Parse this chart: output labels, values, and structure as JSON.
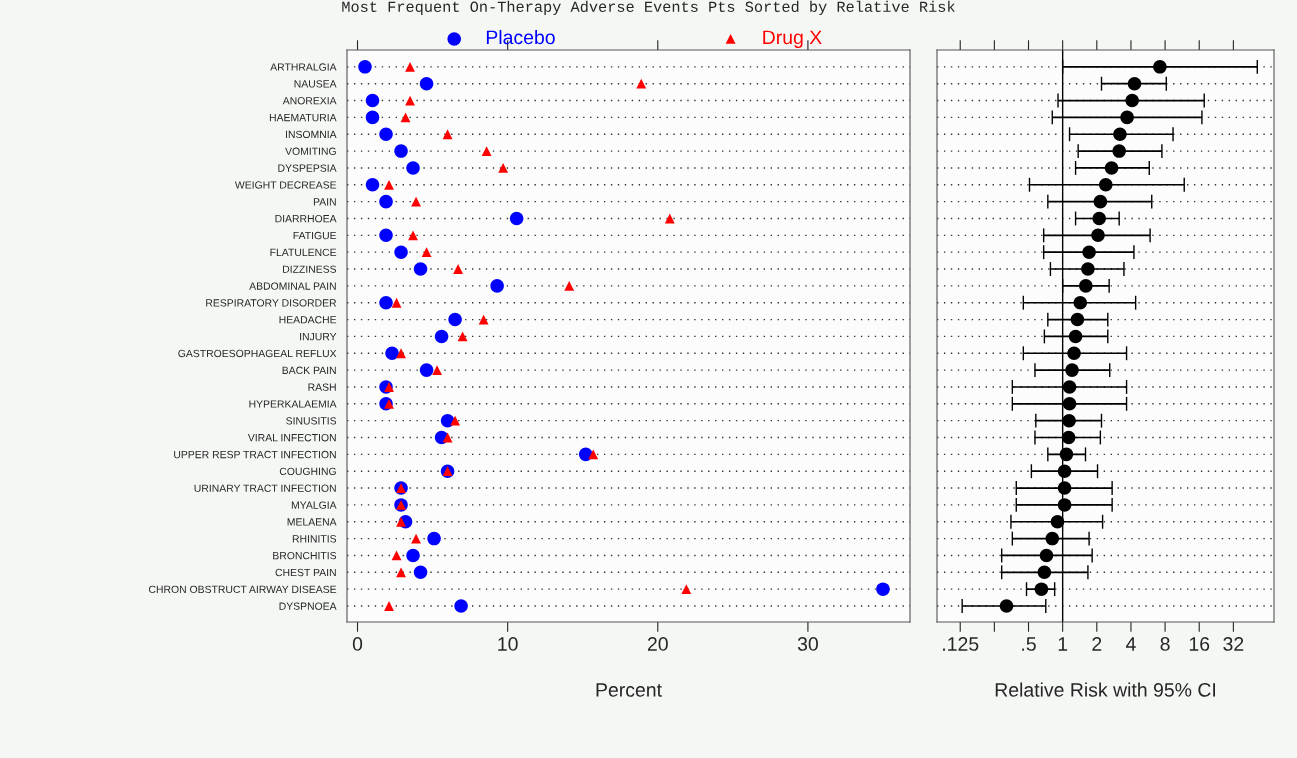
{
  "chart_data": [
    {
      "type": "scatter",
      "title": "Most Frequent On-Therapy Adverse Events Pts Sorted by Relative Risk",
      "xlabel": "Percent",
      "categories": [
        "ARTHRALGIA",
        "NAUSEA",
        "ANOREXIA",
        "HAEMATURIA",
        "INSOMNIA",
        "VOMITING",
        "DYSPEPSIA",
        "WEIGHT DECREASE",
        "PAIN",
        "DIARRHOEA",
        "FATIGUE",
        "FLATULENCE",
        "DIZZINESS",
        "ABDOMINAL PAIN",
        "RESPIRATORY DISORDER",
        "HEADACHE",
        "INJURY",
        "GASTROESOPHAGEAL REFLUX",
        "BACK PAIN",
        "RASH",
        "HYPERKALAEMIA",
        "SINUSITIS",
        "VIRAL INFECTION",
        "UPPER RESP TRACT INFECTION",
        "COUGHING",
        "URINARY TRACT INFECTION",
        "MYALGIA",
        "MELAENA",
        "RHINITIS",
        "BRONCHITIS",
        "CHEST PAIN",
        "CHRON OBSTRUCT AIRWAY DISEASE",
        "DYSPNOEA"
      ],
      "orientation": "horizontal",
      "series": [
        {
          "name": "Placebo",
          "color": "#0000ff",
          "marker": "circle",
          "values": [
            0.5,
            4.6,
            1.0,
            1.0,
            1.9,
            2.9,
            3.7,
            1.0,
            1.9,
            10.6,
            1.9,
            2.9,
            4.2,
            9.3,
            1.9,
            6.5,
            5.6,
            2.3,
            4.6,
            1.9,
            1.9,
            6.0,
            5.6,
            15.2,
            6.0,
            2.9,
            2.9,
            3.2,
            5.1,
            3.7,
            4.2,
            35.0,
            6.9
          ]
        },
        {
          "name": "Drug X",
          "color": "#ff0000",
          "marker": "triangle",
          "values": [
            3.5,
            18.9,
            3.5,
            3.2,
            6.0,
            8.6,
            9.7,
            2.1,
            3.9,
            20.8,
            3.7,
            4.6,
            6.7,
            14.1,
            2.6,
            8.4,
            7.0,
            2.9,
            5.3,
            2.1,
            2.1,
            6.5,
            6.0,
            15.7,
            6.0,
            2.9,
            2.9,
            2.9,
            3.9,
            2.6,
            2.9,
            21.9,
            2.1
          ]
        }
      ],
      "xlim": [
        -0.7,
        36.8
      ],
      "xticks": [
        0,
        10,
        20,
        30
      ],
      "grid": "y",
      "legend": "top"
    },
    {
      "type": "scatter",
      "xlabel": "Relative Risk with 95% CI",
      "categories": [
        null,
        null,
        null,
        null,
        null,
        null,
        null,
        null,
        null,
        null,
        null,
        null,
        null,
        null,
        null,
        null,
        null,
        null,
        null,
        null,
        null,
        null,
        null,
        null,
        null,
        null,
        null,
        null,
        null,
        null,
        null,
        null,
        null
      ],
      "orientation": "horizontal",
      "marker": "circle",
      "series": [
        {
          "color": "#000000",
          "values": [
            7.2,
            4.3,
            4.1,
            3.7,
            3.2,
            3.15,
            2.7,
            2.4,
            2.15,
            2.1,
            2.05,
            1.71,
            1.67,
            1.6,
            1.43,
            1.35,
            1.3,
            1.26,
            1.21,
            1.15,
            1.15,
            1.14,
            1.13,
            1.08,
            1.04,
            1.04,
            1.04,
            0.9,
            0.81,
            0.72,
            0.69,
            0.65,
            0.32
          ],
          "errors": [
            [
              1.0,
              52
            ],
            [
              2.2,
              8.2
            ],
            [
              0.91,
              17.7
            ],
            [
              0.81,
              16.9
            ],
            [
              1.15,
              9.4
            ],
            [
              1.37,
              7.5
            ],
            [
              1.3,
              5.8
            ],
            [
              0.51,
              11.8
            ],
            [
              0.74,
              6.1
            ],
            [
              1.3,
              3.15
            ],
            [
              0.68,
              5.9
            ],
            [
              0.68,
              4.25
            ],
            [
              0.78,
              3.47
            ],
            [
              1.0,
              2.57
            ],
            [
              0.45,
              4.4
            ],
            [
              0.74,
              2.5
            ],
            [
              0.69,
              2.5
            ],
            [
              0.45,
              3.66
            ],
            [
              0.57,
              2.6
            ],
            [
              0.36,
              3.66
            ],
            [
              0.36,
              3.66
            ],
            [
              0.58,
              2.2
            ],
            [
              0.57,
              2.15
            ],
            [
              0.74,
              1.59
            ],
            [
              0.53,
              2.03
            ],
            [
              0.39,
              2.73
            ],
            [
              0.39,
              2.73
            ],
            [
              0.35,
              2.25
            ],
            [
              0.36,
              1.71
            ],
            [
              0.29,
              1.82
            ],
            [
              0.29,
              1.67
            ],
            [
              0.48,
              0.85
            ],
            [
              0.13,
              0.71
            ]
          ]
        }
      ],
      "log": "x",
      "xlim": [
        0.078,
        73
      ],
      "xticks": [
        {
          "value": 0.125,
          "label": ".125"
        },
        {
          "value": 0.25,
          "label": null
        },
        {
          "value": 0.5,
          "label": ".5"
        },
        1,
        2,
        4,
        8,
        16,
        32
      ],
      "ref_lines": [
        {
          "axis": "x",
          "value": 1,
          "color": "#000000"
        }
      ],
      "grid": "y",
      "tick_labels": "x"
    }
  ]
}
